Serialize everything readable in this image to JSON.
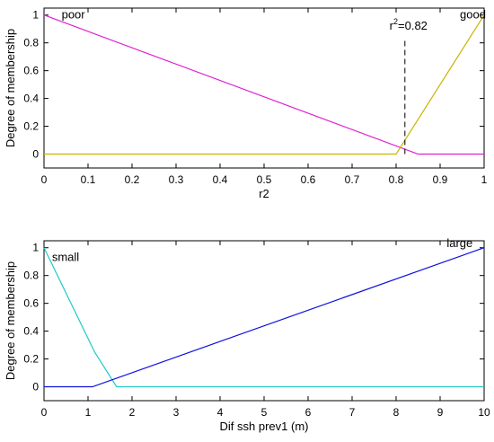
{
  "chart_data": [
    {
      "type": "line",
      "xlabel": "r2",
      "ylabel": "Degree of membership",
      "xlim": [
        0,
        1
      ],
      "ylim": [
        -0.1,
        1.05
      ],
      "xticks": [
        "0",
        "0.1",
        "0.2",
        "0.3",
        "0.4",
        "0.5",
        "0.6",
        "0.7",
        "0.8",
        "0.9",
        "1"
      ],
      "yticks": [
        "0",
        "0.2",
        "0.4",
        "0.6",
        "0.8",
        "1"
      ],
      "grid": false,
      "series": [
        {
          "name": "poor",
          "color": "#e020d0",
          "x": [
            0,
            0.85,
            1
          ],
          "y": [
            1,
            0,
            0
          ]
        },
        {
          "name": "good",
          "color": "#c8b400",
          "x": [
            0,
            0.8,
            1
          ],
          "y": [
            0,
            0,
            1
          ]
        }
      ],
      "annotations": [
        {
          "text": "poor",
          "x": 0.04,
          "y": 1.0
        },
        {
          "text": "good",
          "x": 0.945,
          "y": 1.0
        }
      ],
      "marker": {
        "label_base": "r",
        "label_sup": "2",
        "label_value": "=0.82",
        "x": 0.82,
        "y_from": 0,
        "y_to": 0.83
      }
    },
    {
      "type": "line",
      "xlabel": "Dif ssh prev1 (m)",
      "ylabel": "Degree of membership",
      "xlim": [
        0,
        10
      ],
      "ylim": [
        -0.1,
        1.05
      ],
      "xticks": [
        "0",
        "1",
        "2",
        "3",
        "4",
        "5",
        "6",
        "7",
        "8",
        "9",
        "10"
      ],
      "yticks": [
        "0",
        "0.2",
        "0.4",
        "0.6",
        "0.8",
        "1"
      ],
      "grid": false,
      "series": [
        {
          "name": "small",
          "color": "#20c8c8",
          "x": [
            0,
            1.15,
            1.65,
            10
          ],
          "y": [
            1,
            0.25,
            0,
            0
          ]
        },
        {
          "name": "large",
          "color": "#1010e0",
          "x": [
            0,
            1.1,
            10
          ],
          "y": [
            0,
            0,
            1
          ]
        }
      ],
      "annotations": [
        {
          "text": "small",
          "x": 0.18,
          "y": 0.93
        },
        {
          "text": "large",
          "x": 9.15,
          "y": 1.03
        }
      ]
    }
  ]
}
